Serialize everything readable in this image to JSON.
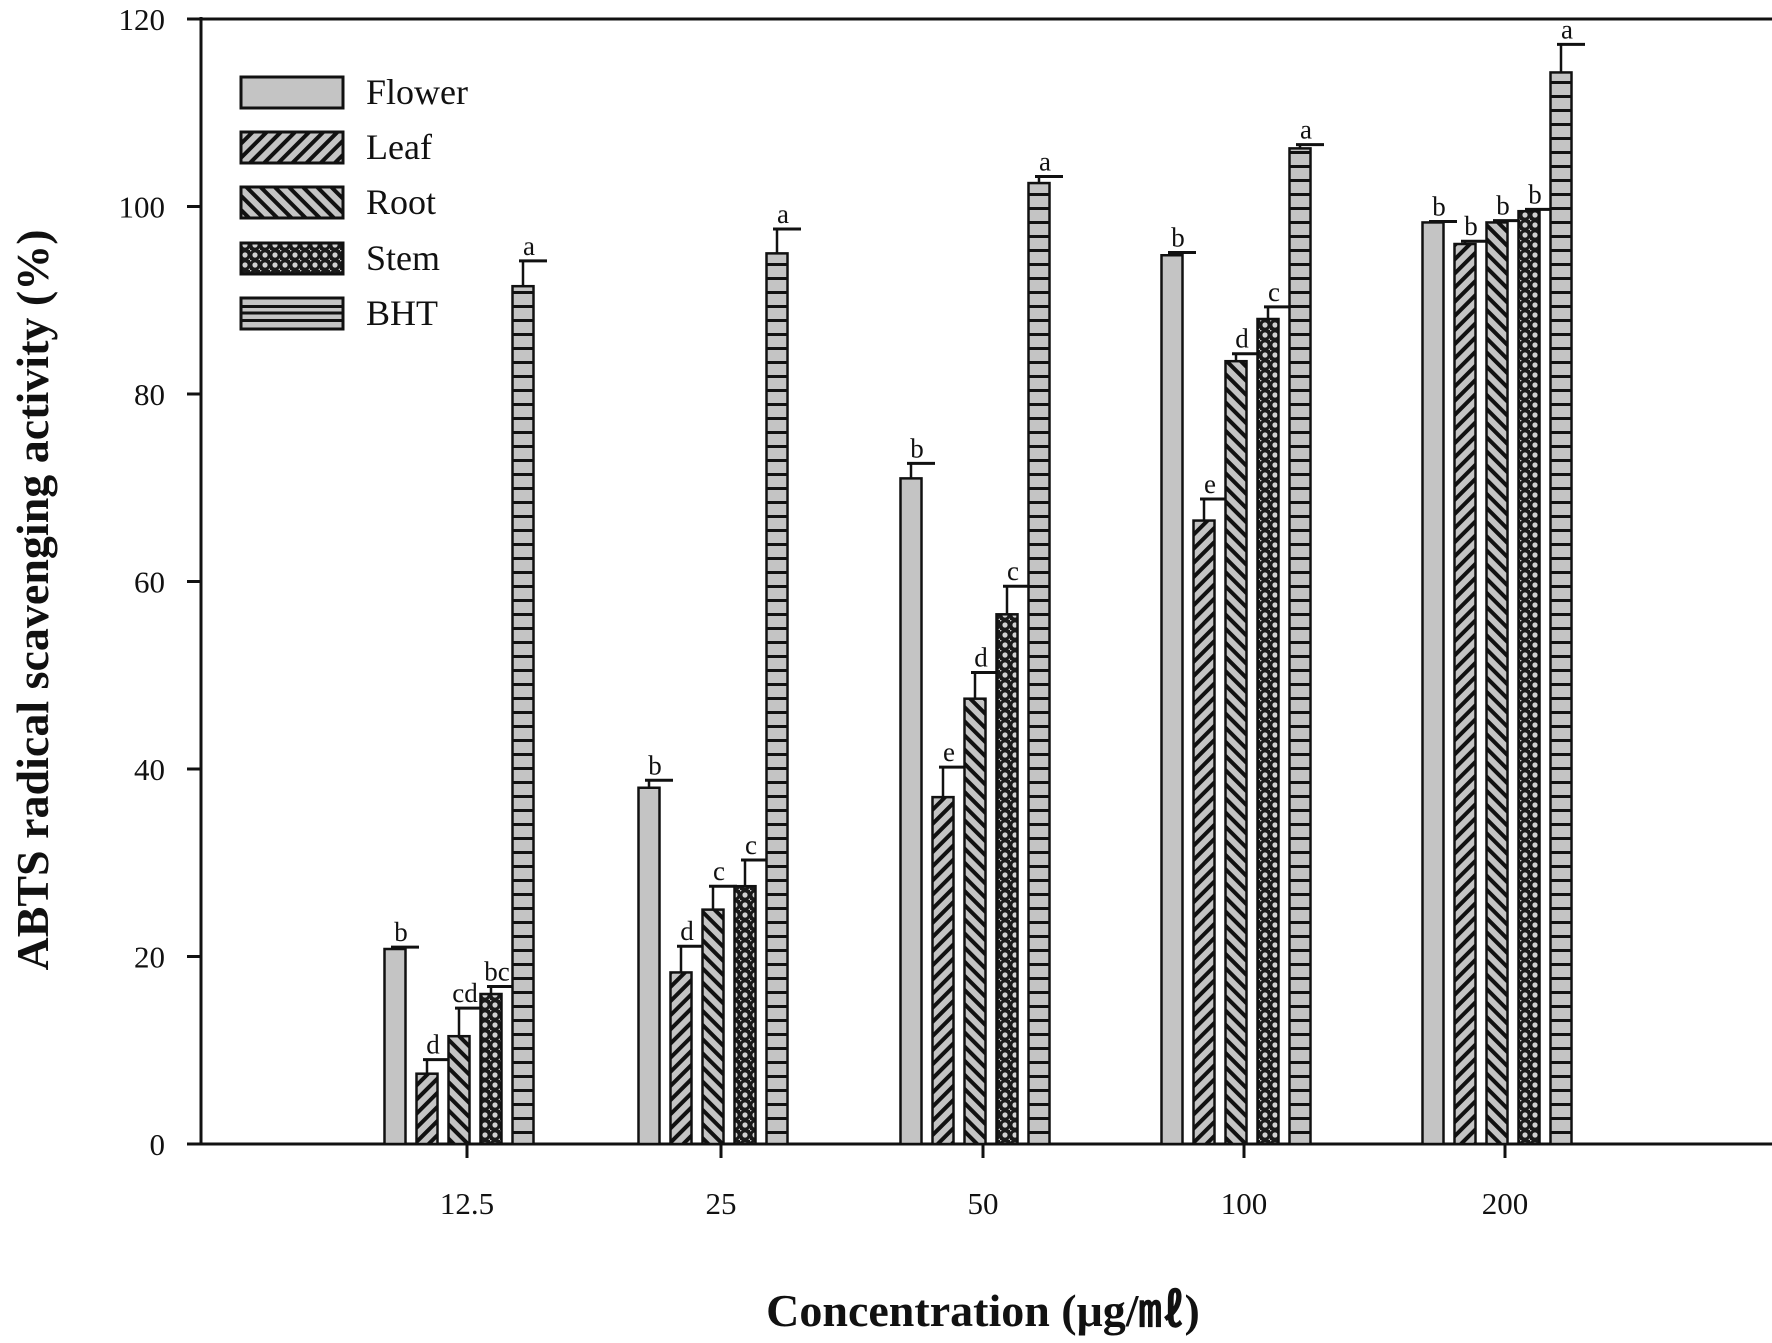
{
  "chart_data": {
    "type": "bar",
    "title": "",
    "xlabel": "Concentration (μg/㎖)",
    "ylabel": "ABTS radical scavenging activity (%)",
    "ylim": [
      0,
      120
    ],
    "yticks": [
      0,
      20,
      40,
      60,
      80,
      100,
      120
    ],
    "categories": [
      "12.5",
      "25",
      "50",
      "100",
      "200"
    ],
    "legend_position": "top-left",
    "grid": false,
    "series": [
      {
        "name": "Flower",
        "pattern": "solid",
        "values": [
          20.8,
          38.0,
          71.0,
          94.8,
          98.3
        ],
        "errors": [
          0.2,
          0.8,
          1.6,
          0.3,
          0.1
        ],
        "letters": [
          "b",
          "b",
          "b",
          "b",
          "b"
        ]
      },
      {
        "name": "Leaf",
        "pattern": "forward-hatch",
        "values": [
          7.5,
          18.3,
          37.0,
          66.5,
          96.0
        ],
        "errors": [
          1.5,
          2.8,
          3.2,
          2.3,
          0.3
        ],
        "letters": [
          "d",
          "d",
          "e",
          "e",
          "b"
        ]
      },
      {
        "name": "Root",
        "pattern": "backward-hatch",
        "values": [
          11.5,
          25.0,
          47.5,
          83.5,
          98.3
        ],
        "errors": [
          3.0,
          2.5,
          2.8,
          0.8,
          0.2
        ],
        "letters": [
          "cd",
          "c",
          "d",
          "d",
          "b"
        ]
      },
      {
        "name": "Stem",
        "pattern": "crosshatch",
        "values": [
          16.0,
          27.5,
          56.5,
          88.0,
          99.5
        ],
        "errors": [
          0.8,
          2.8,
          3.0,
          1.3,
          0.2
        ],
        "letters": [
          "bc",
          "c",
          "c",
          "c",
          "b"
        ]
      },
      {
        "name": "BHT",
        "pattern": "horizontal",
        "values": [
          91.5,
          95.0,
          102.5,
          106.2,
          114.3
        ],
        "errors": [
          2.7,
          2.6,
          0.7,
          0.4,
          3.0
        ],
        "letters": [
          "a",
          "a",
          "a",
          "a",
          "a"
        ]
      }
    ],
    "colors": {
      "fill": "#c4c4c4",
      "line": "#111111"
    }
  }
}
